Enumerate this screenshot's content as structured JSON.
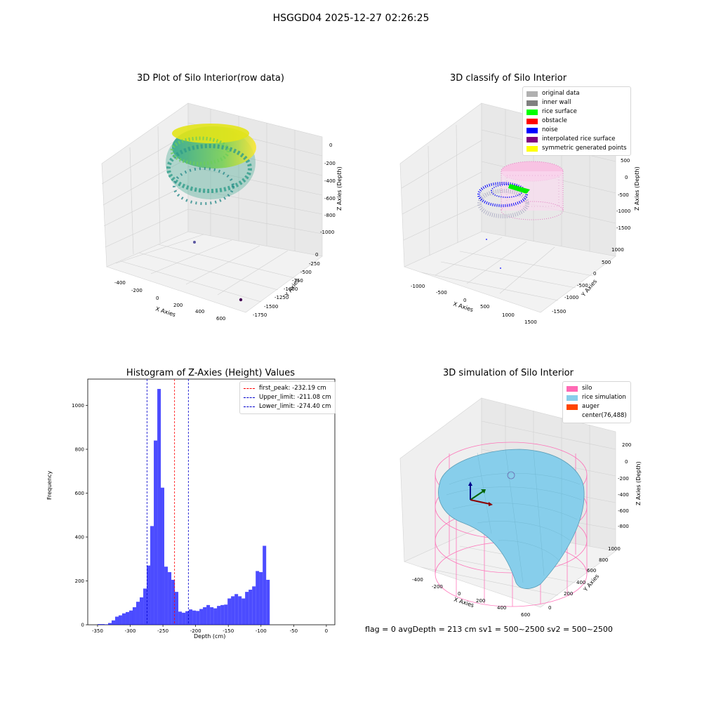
{
  "figure": {
    "suptitle": "HSGGD04 2025-12-27 02:26:25",
    "footer": "flag = 0     avgDepth = 213 cm  sv1 = 500~2500  sv2 = 500~2500"
  },
  "panels": {
    "raw": {
      "title": "3D Plot of Silo Interior(row data)",
      "xlabel": "X Axies",
      "ylabel": "Y Axies",
      "zlabel": "Z Axies (Depth)",
      "xticks": [
        "-400",
        "-200",
        "0",
        "200",
        "400",
        "600"
      ],
      "yticks": [
        "0",
        "-250",
        "-500",
        "-750",
        "-1000",
        "-1250",
        "-1500",
        "-1750"
      ],
      "zticks": [
        "0",
        "-200",
        "-400",
        "-600",
        "-800",
        "-1000"
      ]
    },
    "classify": {
      "title": "3D classify of Silo Interior",
      "xlabel": "X Axies",
      "ylabel": "Y Axies",
      "zlabel": "Z Axies (Depth)",
      "xticks": [
        "-1000",
        "-500",
        "0",
        "500",
        "1000",
        "1500"
      ],
      "yticks": [
        "1000",
        "500",
        "0",
        "-500",
        "-1000",
        "-1500"
      ],
      "zticks": [
        "500",
        "0",
        "-500",
        "-1000",
        "-1500"
      ],
      "legend": [
        {
          "label": "original data",
          "color": "#b0b0b0"
        },
        {
          "label": "inner wall",
          "color": "#808080"
        },
        {
          "label": "rice surface",
          "color": "#00ff00"
        },
        {
          "label": "obstacle",
          "color": "#ff0000"
        },
        {
          "label": "noise",
          "color": "#0000ff"
        },
        {
          "label": "interpolated rice surface",
          "color": "#800080"
        },
        {
          "label": "symmetric generated points",
          "color": "#ffff00"
        }
      ]
    },
    "simulation": {
      "title": "3D simulation of Silo Interior",
      "xlabel": "X Axies",
      "ylabel": "Y Axies",
      "zlabel": "Z Axies (Depth)",
      "xticks": [
        "-400",
        "-200",
        "0",
        "200",
        "400",
        "600"
      ],
      "yticks": [
        "0",
        "200",
        "400",
        "600",
        "800",
        "1000"
      ],
      "zticks": [
        "200",
        "0",
        "-200",
        "-400",
        "-600",
        "-800"
      ],
      "legend": [
        {
          "label": "silo",
          "color": "#ff69b4"
        },
        {
          "label": "rice simulation",
          "color": "#87ceeb"
        },
        {
          "label": "auger",
          "color": "#ff4500"
        },
        {
          "label": "center(76,488)",
          "color": "#ffffff"
        }
      ]
    }
  },
  "chart_data": [
    {
      "type": "bar",
      "title": "Histogram of Z-Axies (Height) Values",
      "xlabel": "Depth (cm)",
      "ylabel": "Frequency",
      "xlim": [
        -365,
        13
      ],
      "ylim": [
        0,
        1120
      ],
      "xticks": [
        -350,
        -300,
        -250,
        -200,
        -150,
        -100,
        -50,
        0
      ],
      "yticks": [
        0,
        200,
        400,
        600,
        800,
        1000
      ],
      "bar_color": "#0000ff",
      "bin_width": 5.37,
      "bins_start": [
        -350,
        -344.6,
        -339.3,
        -333.9,
        -328.5,
        -323.1,
        -317.8,
        -312.4,
        -307.0,
        -301.6,
        -296.3,
        -290.9,
        -285.5,
        -280.1,
        -274.8,
        -269.4,
        -264.0,
        -258.6,
        -253.3,
        -247.9,
        -242.5,
        -237.1,
        -231.8,
        -226.4,
        -221.0,
        -215.6,
        -210.3,
        -204.9,
        -199.5,
        -194.1,
        -188.8,
        -183.4,
        -178.0,
        -172.6,
        -167.3,
        -161.9,
        -156.5,
        -151.1,
        -145.8,
        -140.4,
        -135.0,
        -129.6,
        -124.3,
        -118.9,
        -113.5,
        -108.1,
        -102.8,
        -97.4,
        -92.0,
        -86.6,
        -81.3,
        -75.9,
        -70.5,
        -65.1,
        -59.8,
        -54.4,
        -49.0,
        -43.6,
        -38.3,
        -32.9,
        -27.5,
        -22.1,
        -16.8,
        -11.4,
        -6.0
      ],
      "values": [
        3,
        3,
        2,
        8,
        20,
        37,
        43,
        52,
        58,
        65,
        80,
        105,
        125,
        165,
        270,
        450,
        840,
        1075,
        625,
        265,
        240,
        205,
        150,
        60,
        55,
        62,
        70,
        65,
        63,
        72,
        80,
        90,
        80,
        75,
        86,
        90,
        92,
        120,
        130,
        140,
        130,
        120,
        150,
        160,
        175,
        245,
        240,
        360,
        205,
        0,
        0,
        0,
        0,
        0,
        0,
        0,
        0,
        0,
        0,
        0,
        0,
        0,
        0,
        0,
        0
      ],
      "lines": [
        {
          "label": "first_peak: -232.19 cm",
          "x": -232.19,
          "color": "#ff0000"
        },
        {
          "label": "Upper_limit: -211.08 cm",
          "x": -211.08,
          "color": "#0000cc"
        },
        {
          "label": "Lower_limit: -274.40 cm",
          "x": -274.4,
          "color": "#0000cc"
        }
      ],
      "legend_position": "top-right"
    }
  ]
}
